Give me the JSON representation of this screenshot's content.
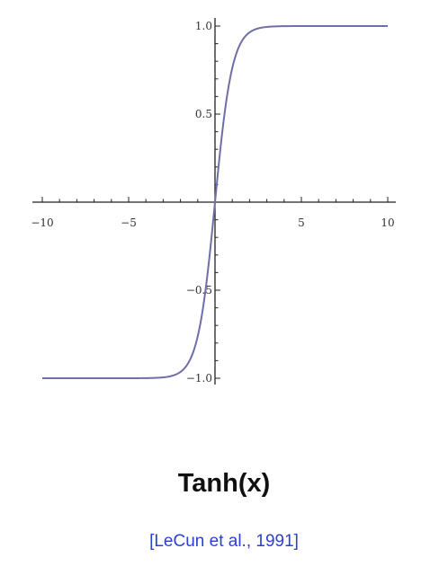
{
  "chart_data": {
    "type": "line",
    "function": "tanh",
    "title": "",
    "xlabel": "",
    "ylabel": "",
    "xlim": [
      -10,
      10
    ],
    "ylim": [
      -1.0,
      1.0
    ],
    "grid": false,
    "x_ticks": [
      -10,
      -5,
      5,
      10
    ],
    "x_tick_labels": [
      "−10",
      "−5",
      "5",
      "10"
    ],
    "y_ticks": [
      1.0,
      0.5,
      -0.5,
      -1.0
    ],
    "y_tick_labels": [
      "1.0",
      "0.5",
      "−0.5",
      "−1.0"
    ],
    "series": [
      {
        "x": [
          -10,
          -5,
          -3,
          -2,
          -1.5,
          -1,
          -0.5,
          0,
          0.5,
          1,
          1.5,
          2,
          3,
          5,
          10
        ],
        "values": [
          -1.0,
          -0.9999,
          -0.995,
          -0.964,
          -0.905,
          -0.762,
          -0.462,
          0.0,
          0.462,
          0.762,
          0.905,
          0.964,
          0.995,
          0.9999,
          1.0
        ]
      }
    ]
  },
  "caption": {
    "title": "Tanh(x)",
    "citation": "[LeCun et al., 1991]"
  },
  "colors": {
    "curve": "#6f6fa6",
    "axis": "#222222",
    "citation": "#2a3fd6"
  }
}
